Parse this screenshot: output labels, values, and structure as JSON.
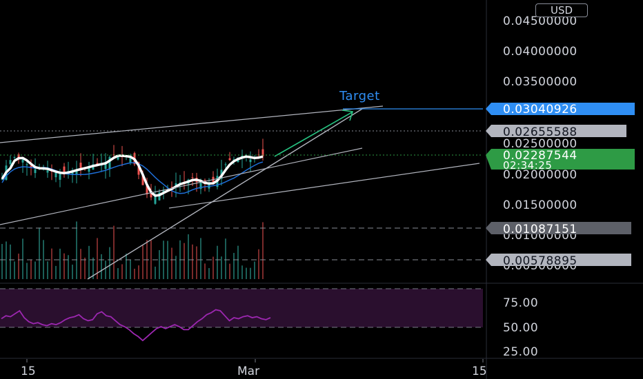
{
  "currency_button": "USD",
  "drawing_label": "Target",
  "colors": {
    "up": "#26a69a",
    "down": "#ef5350",
    "ma": "#ffffff",
    "ma_slow": "#1e6fd9",
    "target": "#2f8ef3",
    "arrow": "#26c281",
    "rsi": "#9c27b0",
    "current_tag": "#2e9b45",
    "grey_tag": "#5d6068"
  },
  "price_axis": {
    "ticks": [
      "0.04500000",
      "0.04000000",
      "0.03500000",
      "0.02500000",
      "0.02000000",
      "0.01500000",
      "0.01000000",
      "0.00500000"
    ]
  },
  "price_tags": {
    "target": "0.03040926",
    "resistance": "0.02655588",
    "current": "0.02287544",
    "countdown": "02:34:25",
    "support_1": "0.01087151",
    "support_2": "0.00578895"
  },
  "rsi_axis": {
    "ticks": [
      "75.00",
      "50.00",
      "25.00"
    ]
  },
  "time_axis": {
    "labels": [
      "15",
      "Mar",
      "15"
    ]
  },
  "chart_data": {
    "type": "candlestick",
    "currency": "USD",
    "x": [
      "15",
      "Mar",
      "15"
    ],
    "price_levels": {
      "target": 0.03040926,
      "resistance": 0.02655588,
      "current": 0.02287544,
      "support_1": 0.01087151,
      "support_2": 0.00578895
    },
    "close_series": [
      0.019,
      0.0212,
      0.0221,
      0.0226,
      0.0225,
      0.0222,
      0.0214,
      0.0208,
      0.0206,
      0.0209,
      0.0207,
      0.0204,
      0.0202,
      0.02,
      0.0199,
      0.02,
      0.0203,
      0.0204,
      0.0206,
      0.0208,
      0.0209,
      0.0211,
      0.0214,
      0.0213,
      0.0216,
      0.0218,
      0.0226,
      0.023,
      0.0228,
      0.0226,
      0.0228,
      0.0225,
      0.0214,
      0.0197,
      0.018,
      0.0165,
      0.016,
      0.0163,
      0.0168,
      0.0171,
      0.0173,
      0.0177,
      0.0183,
      0.0184,
      0.0184,
      0.0189,
      0.0192,
      0.0185,
      0.0184,
      0.0182,
      0.0182,
      0.0185,
      0.0195,
      0.0205,
      0.0214,
      0.0221,
      0.0222,
      0.0225,
      0.0228,
      0.0227,
      0.0222,
      0.0224,
      0.0229,
      0.0227
    ],
    "rsi_series": [
      58,
      61,
      60,
      63,
      66,
      59,
      55,
      53,
      54,
      52,
      51,
      53,
      52,
      54,
      57,
      59,
      60,
      62,
      58,
      56,
      57,
      63,
      65,
      61,
      60,
      56,
      52,
      50,
      47,
      43,
      40,
      36,
      40,
      44,
      48,
      50,
      48,
      50,
      52,
      50,
      47,
      47,
      51,
      55,
      58,
      62,
      64,
      67,
      66,
      61,
      56,
      59,
      58,
      60,
      61,
      59,
      60,
      58,
      57,
      59
    ],
    "rsi_range": [
      0,
      100
    ],
    "rsi_levels": [
      70,
      50
    ],
    "trendlines": [
      {
        "from": [
          "15",
          0.0245
        ],
        "to": [
          "Mar",
          0.0305
        ]
      },
      {
        "from": [
          "15",
          0.0122
        ],
        "to": [
          "Mar",
          0.021
        ]
      },
      {
        "from": [
          "15",
          0.019
        ],
        "to": [
          "Mar",
          0.0235
        ]
      }
    ]
  }
}
